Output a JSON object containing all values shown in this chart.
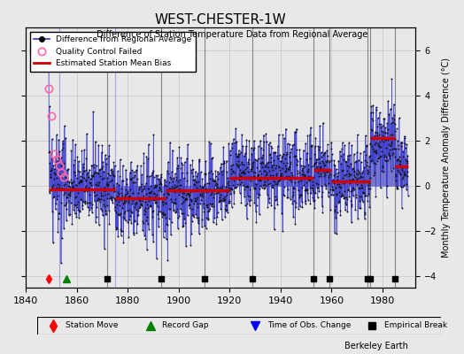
{
  "title": "WEST-CHESTER-1W",
  "subtitle": "Difference of Station Temperature Data from Regional Average",
  "ylabel": "Monthly Temperature Anomaly Difference (°C)",
  "xlabel_bottom": "",
  "xlim": [
    1840,
    1993
  ],
  "ylim": [
    -4.5,
    7
  ],
  "yticks": [
    -4,
    -2,
    0,
    2,
    4,
    6
  ],
  "xticks": [
    1840,
    1860,
    1880,
    1900,
    1920,
    1940,
    1960,
    1980
  ],
  "bg_color": "#e8e8e8",
  "plot_bg_color": "#e8e8e8",
  "seed": 42,
  "data_start_year": 1849,
  "data_end_year": 1990,
  "qc_failed_years": [
    1849,
    1850,
    1851,
    1852,
    1853,
    1854,
    1855
  ],
  "qc_failed_values": [
    4.3,
    3.1,
    1.4,
    1.2,
    0.9,
    0.6,
    0.4
  ],
  "station_moves": [
    1849.5
  ],
  "record_gaps": [
    1856
  ],
  "time_of_obs_changes": [],
  "empirical_breaks": [
    1872,
    1893,
    1910,
    1929,
    1953,
    1959,
    1974,
    1975,
    1985
  ],
  "bias_segments": [
    {
      "start": 1849,
      "end": 1875,
      "bias": -0.15
    },
    {
      "start": 1875,
      "end": 1895,
      "bias": -0.55
    },
    {
      "start": 1895,
      "end": 1920,
      "bias": -0.2
    },
    {
      "start": 1920,
      "end": 1953,
      "bias": 0.35
    },
    {
      "start": 1953,
      "end": 1960,
      "bias": 0.7
    },
    {
      "start": 1960,
      "end": 1975,
      "bias": 0.2
    },
    {
      "start": 1975,
      "end": 1985,
      "bias": 2.1
    },
    {
      "start": 1985,
      "end": 1990,
      "bias": 0.85
    }
  ],
  "line_color": "#3333cc",
  "dot_color": "#111111",
  "bias_color": "#cc0000",
  "qc_color": "#ff66aa",
  "vline_color": "#6666cc",
  "grid_color": "#bbbbbb",
  "watermark": "Berkeley Earth",
  "font_family": "DejaVu Sans"
}
